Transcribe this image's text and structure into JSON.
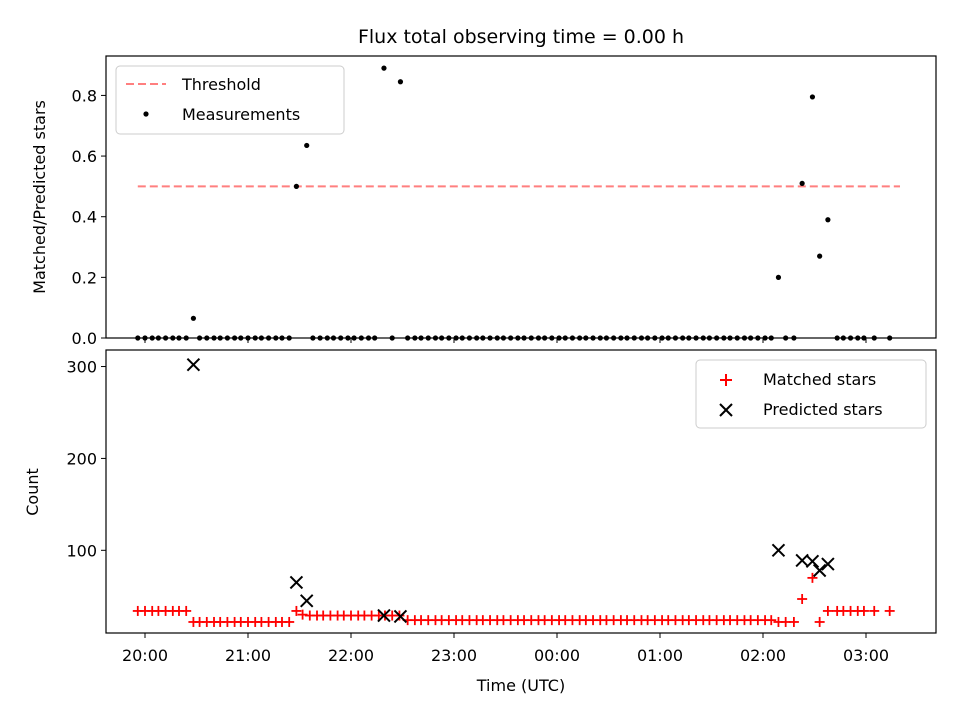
{
  "chart_data": {
    "type": "scatter",
    "title": "Flux total observing time = 0.00 h",
    "xlabel": "Time (UTC)",
    "x_tick_labels": [
      "20:00",
      "21:00",
      "22:00",
      "23:00",
      "00:00",
      "01:00",
      "02:00",
      "03:00"
    ],
    "panels": [
      {
        "ylabel": "Matched/Predicted stars",
        "ylim": [
          0,
          0.93
        ],
        "y_ticks": [
          "0.0",
          "0.2",
          "0.4",
          "0.6",
          "0.8"
        ],
        "legend_position": "upper-left",
        "series": [
          {
            "name": "Threshold",
            "style": "dashed-line",
            "color": "#ff7f7f",
            "x_range_hours": [
              19.93,
              27.33
            ],
            "value": 0.5
          },
          {
            "name": "Measurements",
            "style": "dot",
            "color": "#000000",
            "points": [
              [
                19.93,
                0
              ],
              [
                20.0,
                0
              ],
              [
                20.07,
                0
              ],
              [
                20.13,
                0
              ],
              [
                20.2,
                0
              ],
              [
                20.27,
                0
              ],
              [
                20.33,
                0
              ],
              [
                20.4,
                0
              ],
              [
                20.47,
                0.065
              ],
              [
                20.53,
                0
              ],
              [
                20.6,
                0
              ],
              [
                20.67,
                0
              ],
              [
                20.73,
                0
              ],
              [
                20.8,
                0
              ],
              [
                20.87,
                0
              ],
              [
                20.93,
                0
              ],
              [
                21.0,
                0
              ],
              [
                21.07,
                0
              ],
              [
                21.13,
                0
              ],
              [
                21.2,
                0
              ],
              [
                21.27,
                0
              ],
              [
                21.33,
                0
              ],
              [
                21.4,
                0
              ],
              [
                21.47,
                0.5
              ],
              [
                21.57,
                0.635
              ],
              [
                21.63,
                0
              ],
              [
                21.7,
                0
              ],
              [
                21.77,
                0
              ],
              [
                21.83,
                0
              ],
              [
                21.9,
                0
              ],
              [
                21.97,
                0
              ],
              [
                22.03,
                0
              ],
              [
                22.1,
                0
              ],
              [
                22.17,
                0
              ],
              [
                22.23,
                0
              ],
              [
                22.32,
                0.89
              ],
              [
                22.4,
                0
              ],
              [
                22.48,
                0.845
              ],
              [
                22.55,
                0
              ],
              [
                22.62,
                0
              ],
              [
                22.68,
                0
              ],
              [
                22.75,
                0
              ],
              [
                22.82,
                0
              ],
              [
                22.88,
                0
              ],
              [
                22.95,
                0
              ],
              [
                23.02,
                0
              ],
              [
                23.08,
                0
              ],
              [
                23.15,
                0
              ],
              [
                23.22,
                0
              ],
              [
                23.28,
                0
              ],
              [
                23.35,
                0
              ],
              [
                23.42,
                0
              ],
              [
                23.48,
                0
              ],
              [
                23.55,
                0
              ],
              [
                23.62,
                0
              ],
              [
                23.68,
                0
              ],
              [
                23.75,
                0
              ],
              [
                23.82,
                0
              ],
              [
                23.88,
                0
              ],
              [
                23.95,
                0
              ],
              [
                24.02,
                0
              ],
              [
                24.08,
                0
              ],
              [
                24.15,
                0
              ],
              [
                24.22,
                0
              ],
              [
                24.28,
                0
              ],
              [
                24.35,
                0
              ],
              [
                24.42,
                0
              ],
              [
                24.48,
                0
              ],
              [
                24.55,
                0
              ],
              [
                24.62,
                0
              ],
              [
                24.68,
                0
              ],
              [
                24.75,
                0
              ],
              [
                24.82,
                0
              ],
              [
                24.88,
                0
              ],
              [
                24.95,
                0
              ],
              [
                25.02,
                0
              ],
              [
                25.08,
                0
              ],
              [
                25.15,
                0
              ],
              [
                25.22,
                0
              ],
              [
                25.28,
                0
              ],
              [
                25.35,
                0
              ],
              [
                25.42,
                0
              ],
              [
                25.48,
                0
              ],
              [
                25.55,
                0
              ],
              [
                25.62,
                0
              ],
              [
                25.68,
                0
              ],
              [
                25.75,
                0
              ],
              [
                25.82,
                0
              ],
              [
                25.88,
                0
              ],
              [
                25.95,
                0
              ],
              [
                26.02,
                0
              ],
              [
                26.08,
                0
              ],
              [
                26.15,
                0.2
              ],
              [
                26.22,
                0
              ],
              [
                26.3,
                0
              ],
              [
                26.38,
                0.51
              ],
              [
                26.48,
                0.795
              ],
              [
                26.55,
                0.27
              ],
              [
                26.63,
                0.39
              ],
              [
                26.72,
                0
              ],
              [
                26.78,
                0
              ],
              [
                26.85,
                0
              ],
              [
                26.92,
                0
              ],
              [
                26.98,
                0
              ],
              [
                27.08,
                0
              ],
              [
                27.23,
                0
              ]
            ]
          }
        ]
      },
      {
        "ylabel": "Count",
        "ylim": [
          10,
          318
        ],
        "y_ticks": [
          "100",
          "200",
          "300"
        ],
        "legend_position": "upper-right",
        "series": [
          {
            "name": "Matched stars",
            "style": "plus",
            "color": "#ff0000",
            "points": [
              [
                19.93,
                34
              ],
              [
                20.0,
                34
              ],
              [
                20.07,
                34
              ],
              [
                20.13,
                34
              ],
              [
                20.2,
                34
              ],
              [
                20.27,
                34
              ],
              [
                20.33,
                34
              ],
              [
                20.4,
                34
              ],
              [
                20.47,
                22
              ],
              [
                20.53,
                22
              ],
              [
                20.6,
                22
              ],
              [
                20.67,
                22
              ],
              [
                20.73,
                22
              ],
              [
                20.8,
                22
              ],
              [
                20.87,
                22
              ],
              [
                20.93,
                22
              ],
              [
                21.0,
                22
              ],
              [
                21.07,
                22
              ],
              [
                21.13,
                22
              ],
              [
                21.2,
                22
              ],
              [
                21.27,
                22
              ],
              [
                21.33,
                22
              ],
              [
                21.4,
                22
              ],
              [
                21.47,
                34
              ],
              [
                21.53,
                30
              ],
              [
                21.6,
                29
              ],
              [
                21.67,
                29
              ],
              [
                21.73,
                29
              ],
              [
                21.8,
                29
              ],
              [
                21.87,
                29
              ],
              [
                21.93,
                29
              ],
              [
                22.0,
                29
              ],
              [
                22.07,
                29
              ],
              [
                22.13,
                29
              ],
              [
                22.2,
                29
              ],
              [
                22.27,
                29
              ],
              [
                22.33,
                29
              ],
              [
                22.4,
                29
              ],
              [
                22.47,
                29
              ],
              [
                22.55,
                24
              ],
              [
                22.62,
                24
              ],
              [
                22.68,
                24
              ],
              [
                22.75,
                24
              ],
              [
                22.82,
                24
              ],
              [
                22.88,
                24
              ],
              [
                22.95,
                24
              ],
              [
                23.02,
                24
              ],
              [
                23.08,
                24
              ],
              [
                23.15,
                24
              ],
              [
                23.22,
                24
              ],
              [
                23.28,
                24
              ],
              [
                23.35,
                24
              ],
              [
                23.42,
                24
              ],
              [
                23.48,
                24
              ],
              [
                23.55,
                24
              ],
              [
                23.62,
                24
              ],
              [
                23.68,
                24
              ],
              [
                23.75,
                24
              ],
              [
                23.82,
                24
              ],
              [
                23.88,
                24
              ],
              [
                23.95,
                24
              ],
              [
                24.02,
                24
              ],
              [
                24.08,
                24
              ],
              [
                24.15,
                24
              ],
              [
                24.22,
                24
              ],
              [
                24.28,
                24
              ],
              [
                24.35,
                24
              ],
              [
                24.42,
                24
              ],
              [
                24.48,
                24
              ],
              [
                24.55,
                24
              ],
              [
                24.62,
                24
              ],
              [
                24.68,
                24
              ],
              [
                24.75,
                24
              ],
              [
                24.82,
                24
              ],
              [
                24.88,
                24
              ],
              [
                24.95,
                24
              ],
              [
                25.02,
                24
              ],
              [
                25.08,
                24
              ],
              [
                25.15,
                24
              ],
              [
                25.22,
                24
              ],
              [
                25.28,
                24
              ],
              [
                25.35,
                24
              ],
              [
                25.42,
                24
              ],
              [
                25.48,
                24
              ],
              [
                25.55,
                24
              ],
              [
                25.62,
                24
              ],
              [
                25.68,
                24
              ],
              [
                25.75,
                24
              ],
              [
                25.82,
                24
              ],
              [
                25.88,
                24
              ],
              [
                25.95,
                24
              ],
              [
                26.02,
                24
              ],
              [
                26.08,
                24
              ],
              [
                26.15,
                22
              ],
              [
                26.22,
                22
              ],
              [
                26.3,
                22
              ],
              [
                26.38,
                47
              ],
              [
                26.48,
                70
              ],
              [
                26.55,
                22
              ],
              [
                26.63,
                34
              ],
              [
                26.72,
                34
              ],
              [
                26.78,
                34
              ],
              [
                26.85,
                34
              ],
              [
                26.92,
                34
              ],
              [
                26.98,
                34
              ],
              [
                27.08,
                34
              ],
              [
                27.23,
                34
              ]
            ]
          },
          {
            "name": "Predicted stars",
            "style": "x",
            "color": "#000000",
            "points": [
              [
                20.47,
                302
              ],
              [
                21.47,
                65
              ],
              [
                21.57,
                45
              ],
              [
                22.32,
                29
              ],
              [
                22.48,
                28
              ],
              [
                26.15,
                100
              ],
              [
                26.38,
                89
              ],
              [
                26.48,
                88
              ],
              [
                26.55,
                78
              ],
              [
                26.63,
                85
              ]
            ]
          }
        ]
      }
    ]
  }
}
